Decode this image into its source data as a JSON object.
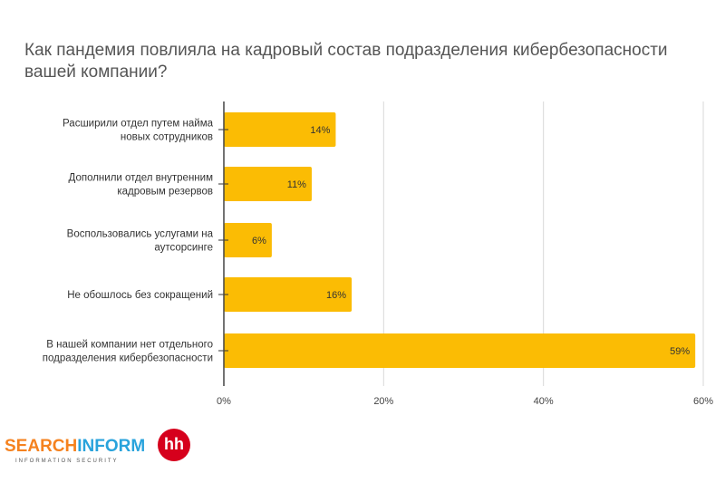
{
  "chart_data": {
    "type": "bar",
    "orientation": "horizontal",
    "title": "Как пандемия повлияла на кадровый состав подразделения кибербезопасности вашей компании?",
    "categories": [
      [
        "Расширили отдел путем найма",
        "новых сотрудников"
      ],
      [
        "Дополнили отдел внутренним",
        "кадровым резервов"
      ],
      [
        "Воспользовались услугами на",
        "аутсорсинге"
      ],
      [
        "Не обошлось без сокращений"
      ],
      [
        "В нашей компании нет отдельного",
        "подразделения кибербезопасности"
      ]
    ],
    "values": [
      14,
      11,
      6,
      16,
      59
    ],
    "data_labels": [
      "14%",
      "11%",
      "6%",
      "16%",
      "59%"
    ],
    "xlim": [
      0,
      60
    ],
    "xticks": [
      0,
      20,
      40,
      60
    ],
    "xtick_labels": [
      "0%",
      "20%",
      "40%",
      "60%"
    ],
    "grid": true,
    "bar_color": "#fbbc04",
    "grid_color": "#d9d9d9"
  },
  "logo": {
    "text_a": "SEARCH",
    "text_b": "INFORM",
    "subtitle": "INFORMATION SECURITY",
    "partner": "hh"
  }
}
